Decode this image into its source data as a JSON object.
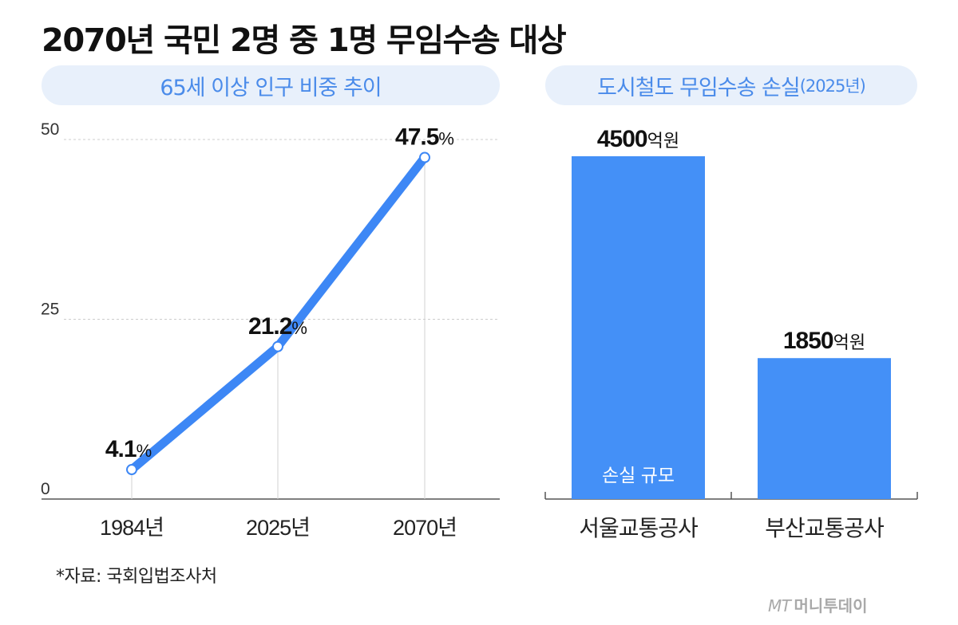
{
  "title": "2070년 국민 2명 중 1명 무임수송 대상",
  "left_panel": {
    "header": "65세 이상 인구 비중 추이"
  },
  "right_panel": {
    "header_main": "도시철도 무임수송 손실",
    "header_sub": "(2025년)"
  },
  "source": "*자료: 국회입법조사처",
  "logo": {
    "mark": "MT",
    "name": "머니투데이"
  },
  "colors": {
    "accent": "#3d87f5",
    "header_text": "#4a8bea",
    "pill_bg": "#e8f0fb",
    "bar": "#4490f7",
    "grid": "#cccccc",
    "axis": "#555555"
  },
  "chart_data": [
    {
      "type": "line",
      "x": [
        "1984년",
        "2025년",
        "2070년"
      ],
      "values": [
        4.1,
        21.2,
        47.5
      ],
      "data_labels": [
        {
          "number": "4.1",
          "unit": "%"
        },
        {
          "number": "21.2",
          "unit": "%"
        },
        {
          "number": "47.5",
          "unit": "%"
        }
      ],
      "y_ticks": [
        "0",
        "25",
        "50"
      ],
      "ylim": [
        0,
        50
      ],
      "grid": true
    },
    {
      "type": "bar",
      "categories": [
        "서울교통공사",
        "부산교통공사"
      ],
      "values": [
        4500,
        1850
      ],
      "data_labels": [
        {
          "number": "4500",
          "unit": "억원"
        },
        {
          "number": "1850",
          "unit": "억원"
        }
      ],
      "inner_label": "손실 규모",
      "ylim": [
        0,
        5000
      ],
      "grid": false
    }
  ]
}
